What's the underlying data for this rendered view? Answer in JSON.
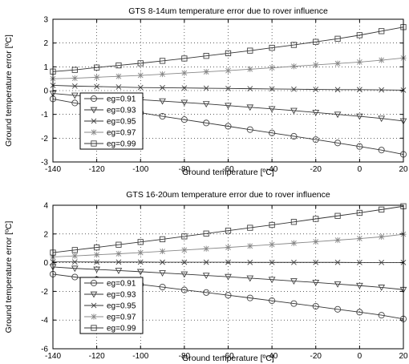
{
  "chart_data": [
    {
      "type": "line",
      "title": "GTS 8-14um temperature error due to rover influence",
      "xlabel": "Ground temperature [ºC]",
      "ylabel": "Ground temperature error [ºC]",
      "xlim": [
        -140,
        20
      ],
      "ylim": [
        -3,
        3
      ],
      "xticks": [
        -140,
        -120,
        -100,
        -80,
        -60,
        -40,
        -20,
        0,
        20
      ],
      "yticks": [
        -3,
        -2,
        -1,
        0,
        1,
        2,
        3
      ],
      "grid": true,
      "legend": "bottom-left",
      "x": [
        -140,
        -130,
        -120,
        -110,
        -100,
        -90,
        -80,
        -70,
        -60,
        -50,
        -40,
        -30,
        -20,
        -10,
        0,
        10,
        20
      ],
      "series": [
        {
          "name": "eg=0.91",
          "marker": "circle",
          "values": [
            -0.35,
            -0.52,
            -0.66,
            -0.8,
            -0.93,
            -1.08,
            -1.22,
            -1.36,
            -1.5,
            -1.64,
            -1.78,
            -1.92,
            -2.06,
            -2.2,
            -2.35,
            -2.5,
            -2.68
          ]
        },
        {
          "name": "eg=0.93",
          "marker": "triangle-down",
          "values": [
            -0.12,
            -0.2,
            -0.26,
            -0.32,
            -0.38,
            -0.44,
            -0.5,
            -0.56,
            -0.63,
            -0.7,
            -0.77,
            -0.84,
            -0.92,
            -1.0,
            -1.08,
            -1.17,
            -1.28
          ]
        },
        {
          "name": "eg=0.95",
          "marker": "x",
          "values": [
            0.22,
            0.19,
            0.17,
            0.15,
            0.13,
            0.12,
            0.11,
            0.1,
            0.09,
            0.08,
            0.07,
            0.06,
            0.05,
            0.04,
            0.04,
            0.03,
            0.02
          ]
        },
        {
          "name": "eg=0.97",
          "marker": "star",
          "values": [
            0.5,
            0.52,
            0.56,
            0.6,
            0.64,
            0.69,
            0.74,
            0.79,
            0.84,
            0.9,
            0.96,
            1.02,
            1.08,
            1.14,
            1.2,
            1.28,
            1.37
          ]
        },
        {
          "name": "eg=0.99",
          "marker": "square",
          "values": [
            0.8,
            0.87,
            0.97,
            1.06,
            1.15,
            1.25,
            1.35,
            1.46,
            1.57,
            1.68,
            1.8,
            1.92,
            2.05,
            2.18,
            2.33,
            2.5,
            2.67
          ]
        }
      ]
    },
    {
      "type": "line",
      "title": "GTS 16-20um temperature error due to rover influence",
      "xlabel": "Ground temperature [ºC]",
      "ylabel": "Ground temperature error [ºC]",
      "xlim": [
        -140,
        20
      ],
      "ylim": [
        -6,
        4
      ],
      "xticks": [
        -140,
        -120,
        -100,
        -80,
        -60,
        -40,
        -20,
        0,
        20
      ],
      "yticks": [
        -6,
        -4,
        -2,
        0,
        2,
        4
      ],
      "grid": true,
      "legend": "bottom-left",
      "x": [
        -140,
        -130,
        -120,
        -110,
        -100,
        -90,
        -80,
        -70,
        -60,
        -50,
        -40,
        -30,
        -20,
        -10,
        0,
        10,
        20
      ],
      "series": [
        {
          "name": "eg=0.91",
          "marker": "circle",
          "values": [
            -0.8,
            -1.0,
            -1.18,
            -1.35,
            -1.52,
            -1.7,
            -1.9,
            -2.08,
            -2.27,
            -2.46,
            -2.65,
            -2.85,
            -3.04,
            -3.25,
            -3.45,
            -3.66,
            -3.92
          ]
        },
        {
          "name": "eg=0.93",
          "marker": "triangle-down",
          "values": [
            -0.3,
            -0.4,
            -0.47,
            -0.55,
            -0.63,
            -0.72,
            -0.8,
            -0.89,
            -0.98,
            -1.08,
            -1.18,
            -1.28,
            -1.38,
            -1.49,
            -1.6,
            -1.72,
            -1.88
          ]
        },
        {
          "name": "eg=0.95",
          "marker": "x",
          "values": [
            0.05,
            0.05,
            0.04,
            0.04,
            0.04,
            0.03,
            0.03,
            0.03,
            0.03,
            0.02,
            0.02,
            0.02,
            0.02,
            0.02,
            0.01,
            0.01,
            0.01
          ]
        },
        {
          "name": "eg=0.97",
          "marker": "star",
          "values": [
            0.4,
            0.47,
            0.55,
            0.62,
            0.7,
            0.79,
            0.88,
            0.97,
            1.06,
            1.16,
            1.26,
            1.36,
            1.46,
            1.57,
            1.68,
            1.8,
            1.98
          ]
        },
        {
          "name": "eg=0.99",
          "marker": "square",
          "values": [
            0.7,
            0.88,
            1.06,
            1.25,
            1.44,
            1.63,
            1.83,
            2.03,
            2.23,
            2.43,
            2.63,
            2.84,
            3.05,
            3.26,
            3.47,
            3.7,
            3.93
          ]
        }
      ]
    }
  ]
}
